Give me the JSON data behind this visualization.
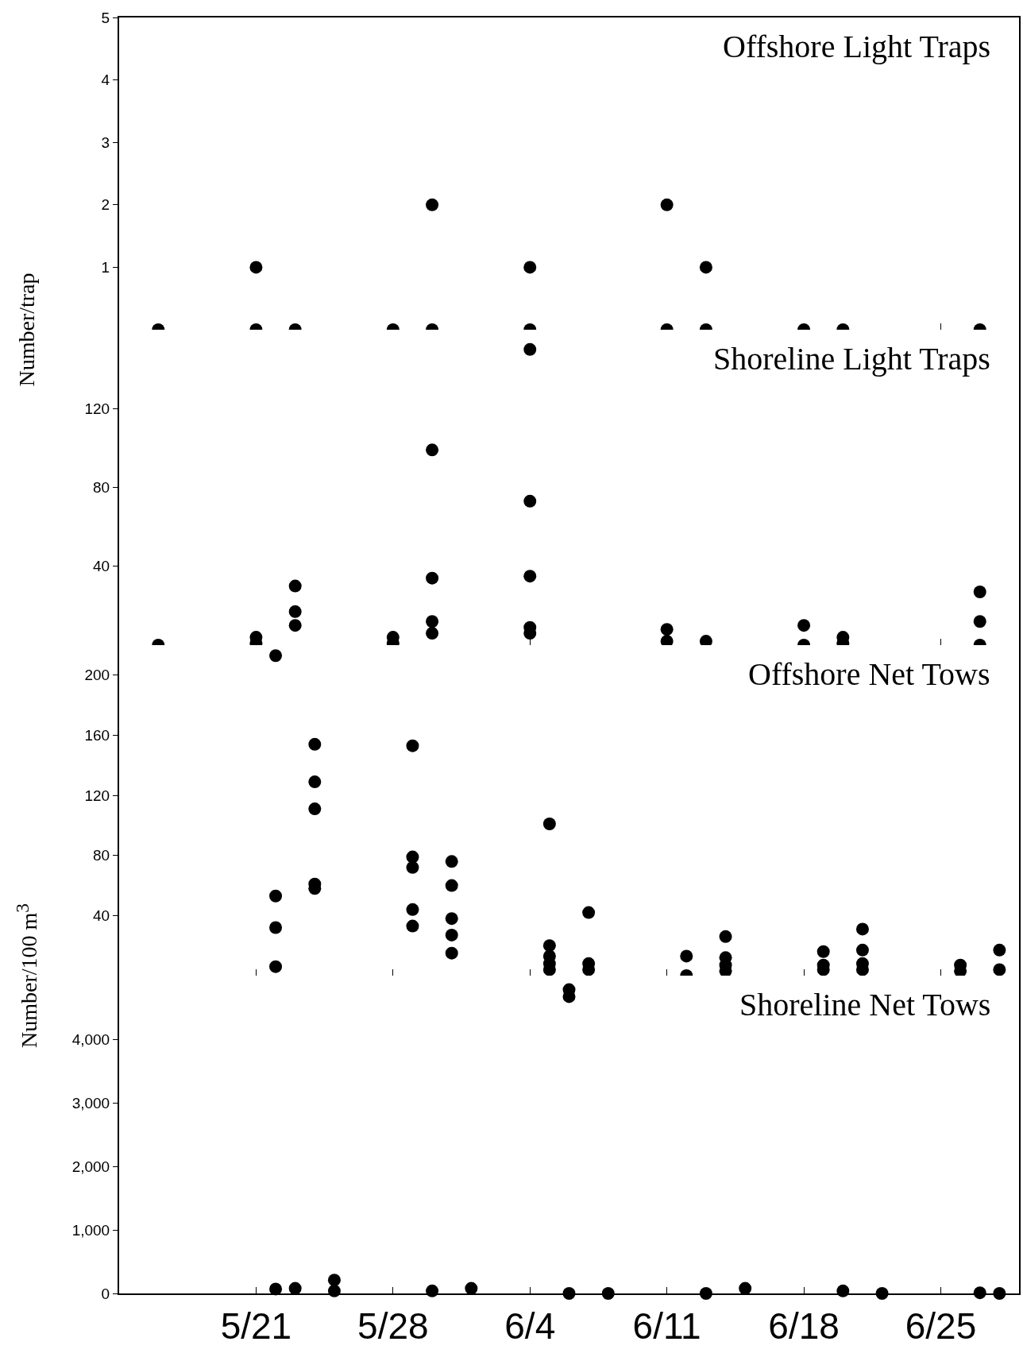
{
  "chart_data": [
    {
      "type": "scatter",
      "title": "Offshore Light Traps",
      "ylabel": "Number/trap",
      "xlim": [
        "--05-14",
        "--06-29"
      ],
      "xticks": [
        {
          "value": "--05-21",
          "label": "5/21"
        },
        {
          "value": "--05-28",
          "label": "5/28"
        },
        {
          "value": "--06-04",
          "label": "6/4"
        },
        {
          "value": "--06-11",
          "label": "6/11"
        },
        {
          "value": "--06-18",
          "label": "6/18"
        },
        {
          "value": "--06-25",
          "label": "6/25"
        }
      ],
      "ylim": [
        0,
        5
      ],
      "yticks": [
        1,
        2,
        3,
        4,
        5
      ],
      "tick_labels": "y",
      "marker": "circle",
      "series": [
        {
          "color": "#000000",
          "x": [
            "--05-16",
            "--05-21",
            "--05-21",
            "--05-23",
            "--05-28",
            "--05-30",
            "--05-30",
            "--06-04",
            "--06-04",
            "--06-11",
            "--06-11",
            "--06-13",
            "--06-13",
            "--06-18",
            "--06-20",
            "--06-27"
          ],
          "values": [
            0,
            1,
            0,
            0,
            0,
            2,
            0,
            1,
            0,
            2,
            0,
            1,
            0,
            0,
            0,
            0
          ]
        }
      ]
    },
    {
      "type": "scatter",
      "title": "Shoreline Light Traps",
      "xlim": [
        "--05-14",
        "--06-29"
      ],
      "xticks": [
        {
          "value": "--05-21",
          "label": "5/21"
        },
        {
          "value": "--05-28",
          "label": "5/28"
        },
        {
          "value": "--06-04",
          "label": "6/4"
        },
        {
          "value": "--06-11",
          "label": "6/11"
        },
        {
          "value": "--06-18",
          "label": "6/18"
        },
        {
          "value": "--06-25",
          "label": "6/25"
        }
      ],
      "ylim": [
        0,
        160
      ],
      "yticks": [
        40,
        80,
        120
      ],
      "tick_labels": "y",
      "marker": "circle",
      "series": [
        {
          "color": "#000000",
          "x": [
            "--05-16",
            "--05-21",
            "--05-21",
            "--05-23",
            "--05-23",
            "--05-23",
            "--05-28",
            "--05-28",
            "--05-30",
            "--05-30",
            "--05-30",
            "--05-30",
            "--06-04",
            "--06-04",
            "--06-04",
            "--06-04",
            "--06-04",
            "--06-11",
            "--06-11",
            "--06-13",
            "--06-18",
            "--06-18",
            "--06-20",
            "--06-20",
            "--06-27",
            "--06-27",
            "--06-27"
          ],
          "values": [
            0,
            4,
            1,
            30,
            17,
            10,
            4,
            1,
            99,
            34,
            12,
            6,
            150,
            73,
            35,
            9,
            6,
            8,
            2,
            2,
            10,
            0,
            4,
            1,
            27,
            12,
            0
          ]
        }
      ]
    },
    {
      "type": "scatter",
      "title": "Offshore Net Tows",
      "ylabel": "Number/100 m$^{3}$",
      "xlim": [
        "--05-14",
        "--06-29"
      ],
      "xticks": [
        {
          "value": "--05-21",
          "label": "5/21"
        },
        {
          "value": "--05-28",
          "label": "5/28"
        },
        {
          "value": "--06-04",
          "label": "6/4"
        },
        {
          "value": "--06-11",
          "label": "6/11"
        },
        {
          "value": "--06-18",
          "label": "6/18"
        },
        {
          "value": "--06-25",
          "label": "6/25"
        }
      ],
      "ylim": [
        0,
        220
      ],
      "yticks": [
        40,
        80,
        120,
        160,
        200
      ],
      "tick_labels": "y",
      "marker": "circle",
      "series": [
        {
          "color": "#000000",
          "x": [
            "--05-22",
            "--05-22",
            "--05-22",
            "--05-22",
            "--05-24",
            "--05-24",
            "--05-24",
            "--05-24",
            "--05-24",
            "--05-29",
            "--05-29",
            "--05-29",
            "--05-29",
            "--05-29",
            "--05-31",
            "--05-31",
            "--05-31",
            "--05-31",
            "--05-31",
            "--06-05",
            "--06-05",
            "--06-05",
            "--06-05",
            "--06-05",
            "--06-07",
            "--06-07",
            "--06-07",
            "--06-12",
            "--06-12",
            "--06-14",
            "--06-14",
            "--06-14",
            "--06-14",
            "--06-19",
            "--06-19",
            "--06-19",
            "--06-21",
            "--06-21",
            "--06-21",
            "--06-21",
            "--06-26",
            "--06-26",
            "--06-28",
            "--06-28"
          ],
          "values": [
            213,
            53,
            32,
            6,
            154,
            129,
            111,
            61,
            58,
            153,
            79,
            72,
            44,
            33,
            76,
            60,
            38,
            27,
            15,
            101,
            20,
            13,
            8,
            4,
            42,
            8,
            4,
            13,
            0,
            26,
            12,
            7,
            3,
            16,
            7,
            4,
            31,
            17,
            8,
            4,
            7,
            3,
            17,
            4
          ]
        }
      ]
    },
    {
      "type": "scatter",
      "title": "Shoreline Net Tows",
      "xlim": [
        "--05-14",
        "--06-29"
      ],
      "xticks": [
        {
          "value": "--05-21",
          "label": "5/21"
        },
        {
          "value": "--05-28",
          "label": "5/28"
        },
        {
          "value": "--06-04",
          "label": "6/4"
        },
        {
          "value": "--06-11",
          "label": "6/11"
        },
        {
          "value": "--06-18",
          "label": "6/18"
        },
        {
          "value": "--06-25",
          "label": "6/25"
        }
      ],
      "ylim": [
        0,
        5000
      ],
      "yticks": [
        0,
        {
          "value": 1000,
          "label": "1,000"
        },
        {
          "value": 2000,
          "label": "2,000"
        },
        {
          "value": 3000,
          "label": "3,000"
        },
        {
          "value": 4000,
          "label": "4,000"
        }
      ],
      "marker": "circle",
      "series": [
        {
          "color": "#000000",
          "x": [
            "--05-22",
            "--05-23",
            "--05-25",
            "--05-25",
            "--05-30",
            "--06-01",
            "--06-06",
            "--06-06",
            "--06-06",
            "--06-08",
            "--06-13",
            "--06-15",
            "--06-20",
            "--06-22",
            "--06-27",
            "--06-28"
          ],
          "values": [
            70,
            80,
            210,
            40,
            40,
            80,
            4780,
            4670,
            0,
            0,
            0,
            80,
            40,
            0,
            10,
            0
          ]
        }
      ]
    }
  ]
}
